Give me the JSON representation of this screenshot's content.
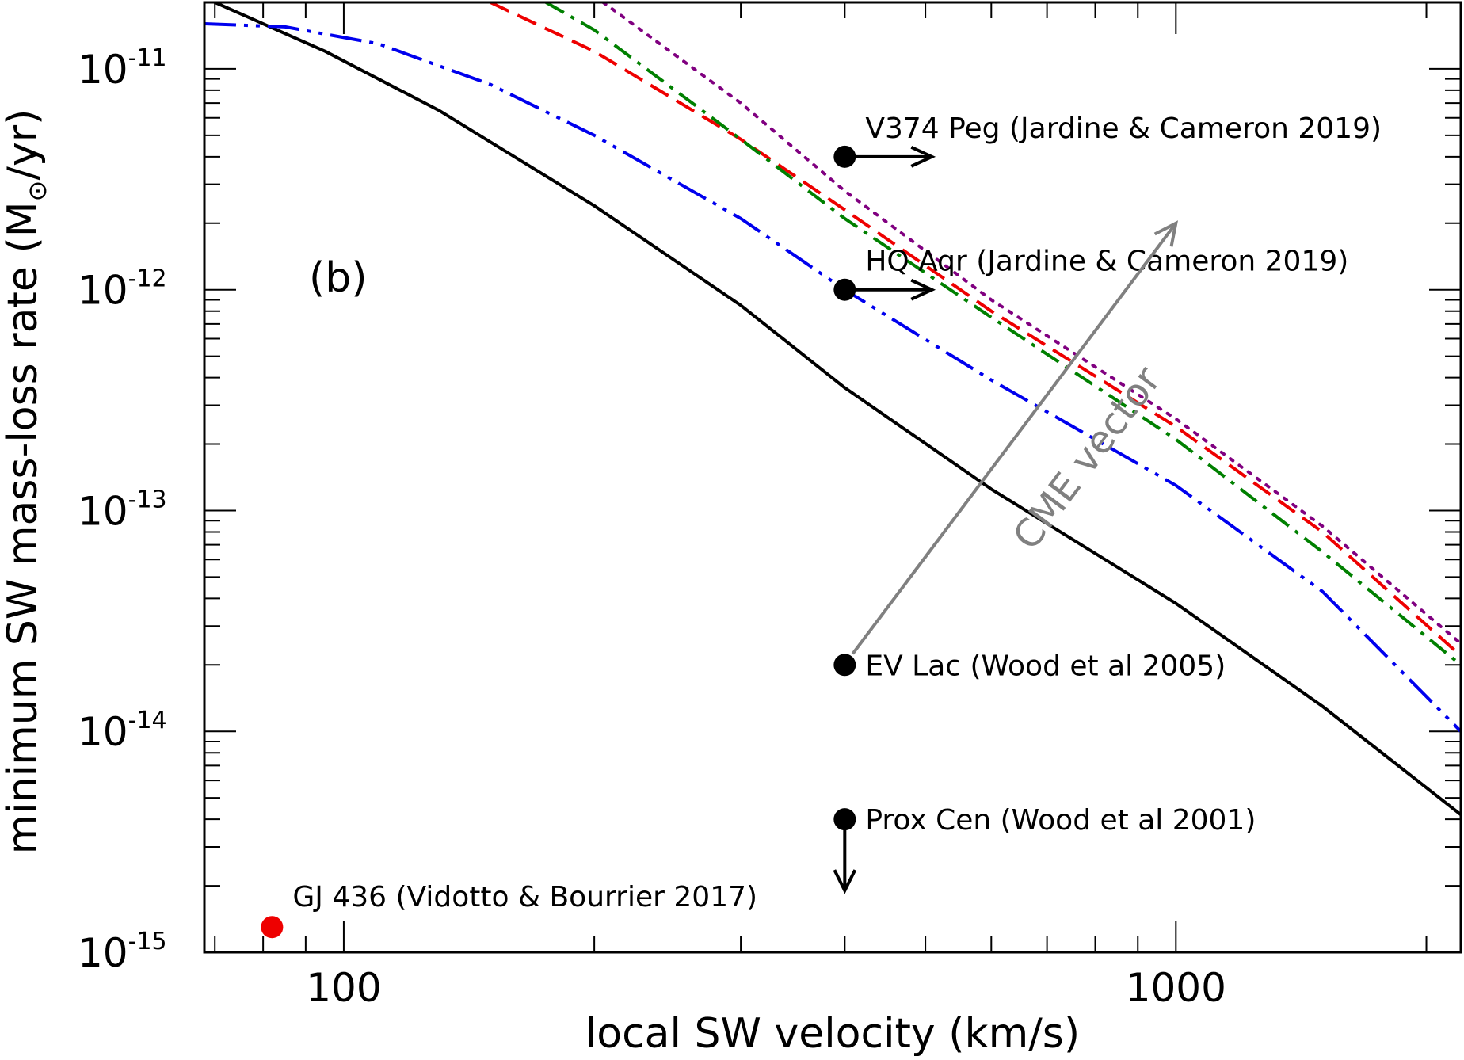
{
  "chart_data": {
    "type": "line",
    "panel_label": "(b)",
    "xlabel": "local SW velocity (km/s)",
    "ylabel": {
      "pre": "minimum SW mass-loss rate (M",
      "sub": "⊙",
      "post": "/yr)"
    },
    "xscale": "log",
    "yscale": "log",
    "xlim": [
      68,
      2200
    ],
    "ylim": [
      1e-15,
      2e-11
    ],
    "x_ticks": [
      {
        "value": 100,
        "label": "100"
      },
      {
        "value": 1000,
        "label": "1000"
      }
    ],
    "y_ticks": [
      {
        "value": 1e-11,
        "base": "10",
        "exp": "-11"
      },
      {
        "value": 1e-12,
        "base": "10",
        "exp": "-12"
      },
      {
        "value": 1e-13,
        "base": "10",
        "exp": "-13"
      },
      {
        "value": 1e-14,
        "base": "10",
        "exp": "-14"
      },
      {
        "value": 1e-15,
        "base": "10",
        "exp": "-15"
      }
    ],
    "series": [
      {
        "name": "solid-black",
        "color": "#000000",
        "dash": "solid",
        "points": [
          [
            68,
            2.1e-11
          ],
          [
            95,
            1.2e-11
          ],
          [
            130,
            6.5e-12
          ],
          [
            200,
            2.4e-12
          ],
          [
            300,
            8.5e-13
          ],
          [
            400,
            3.6e-13
          ],
          [
            600,
            1.25e-13
          ],
          [
            1000,
            3.8e-14
          ],
          [
            1500,
            1.3e-14
          ],
          [
            2200,
            4.2e-15
          ]
        ]
      },
      {
        "name": "blue-dash-dot-dot",
        "color": "#0000ee",
        "dash": "dash-dot-dot",
        "points": [
          [
            68,
            1.6e-11
          ],
          [
            85,
            1.55e-11
          ],
          [
            110,
            1.3e-11
          ],
          [
            150,
            8.5e-12
          ],
          [
            200,
            5e-12
          ],
          [
            300,
            2.1e-12
          ],
          [
            400,
            1e-12
          ],
          [
            600,
            3.9e-13
          ],
          [
            1000,
            1.3e-13
          ],
          [
            1500,
            4.3e-14
          ],
          [
            2200,
            1e-14
          ]
        ]
      },
      {
        "name": "red-dashed",
        "color": "#ee0000",
        "dash": "dashed",
        "points": [
          [
            150,
            2e-11
          ],
          [
            200,
            1.2e-11
          ],
          [
            300,
            4.8e-12
          ],
          [
            400,
            2.3e-12
          ],
          [
            600,
            8e-13
          ],
          [
            1000,
            2.4e-13
          ],
          [
            1500,
            8e-14
          ],
          [
            2200,
            2.2e-14
          ]
        ]
      },
      {
        "name": "green-dash-dot",
        "color": "#008000",
        "dash": "dash-dot",
        "points": [
          [
            175,
            2e-11
          ],
          [
            200,
            1.5e-11
          ],
          [
            300,
            4.8e-12
          ],
          [
            400,
            2.1e-12
          ],
          [
            600,
            7.5e-13
          ],
          [
            1000,
            2.1e-13
          ],
          [
            1500,
            6.5e-14
          ],
          [
            2200,
            2e-14
          ]
        ]
      },
      {
        "name": "purple-dotted",
        "color": "#800080",
        "dash": "dotted",
        "points": [
          [
            205,
            2e-11
          ],
          [
            300,
            7e-12
          ],
          [
            400,
            2.8e-12
          ],
          [
            600,
            9e-13
          ],
          [
            1000,
            2.6e-13
          ],
          [
            1500,
            8.5e-14
          ],
          [
            2200,
            2.5e-14
          ]
        ]
      }
    ],
    "observations": [
      {
        "label": "V374 Peg (Jardine & Cameron 2019)",
        "x": 400,
        "y": 4e-12,
        "color": "#000000",
        "arrow": "right"
      },
      {
        "label": "HQ Aqr (Jardine & Cameron 2019)",
        "x": 400,
        "y": 1e-12,
        "color": "#000000",
        "arrow": "right"
      },
      {
        "label": "EV Lac (Wood et al 2005)",
        "x": 400,
        "y": 2e-14,
        "color": "#000000",
        "arrow": "none"
      },
      {
        "label": "Prox Cen (Wood et al 2001)",
        "x": 400,
        "y": 4e-15,
        "color": "#000000",
        "arrow": "down"
      },
      {
        "label": "GJ 436 (Vidotto & Bourrier 2017)",
        "x": 82,
        "y": 1.3e-15,
        "color": "#ee0000",
        "arrow": "none"
      }
    ],
    "cme_vector": {
      "label": "CME vector",
      "from": [
        400,
        2e-14
      ],
      "to": [
        1000,
        2e-12
      ],
      "color": "#808080"
    }
  }
}
